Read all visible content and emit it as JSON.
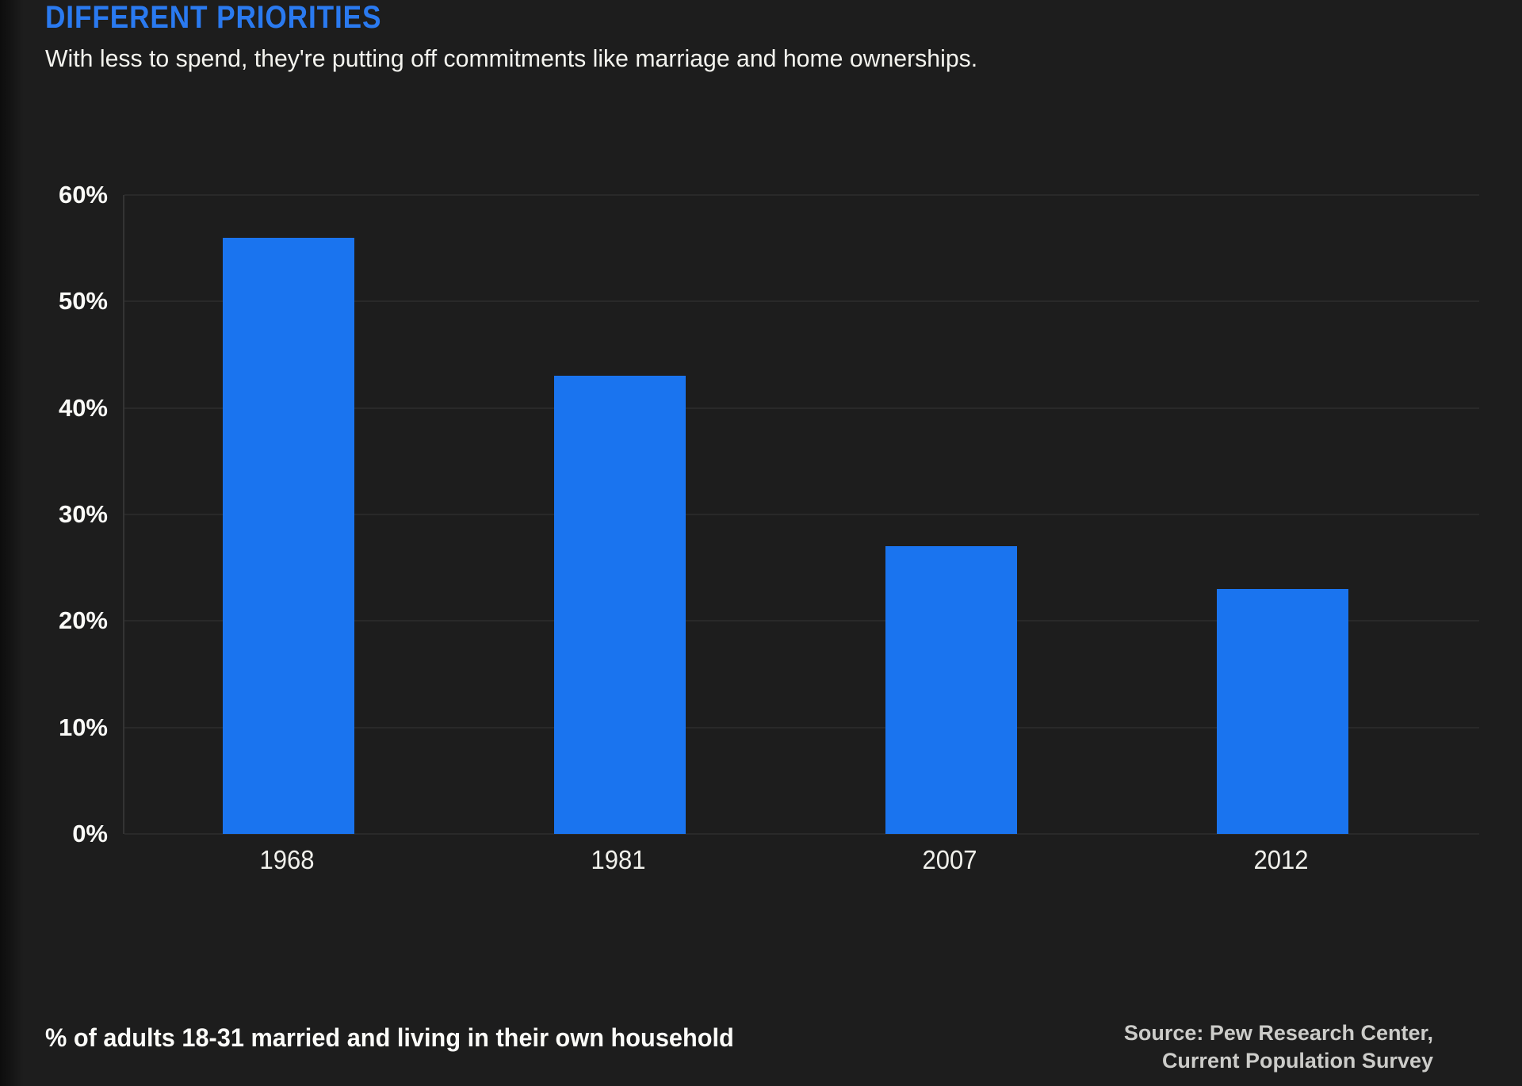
{
  "header": {
    "title": "DIFFERENT PRIORITIES",
    "subtitle": "With less to spend, they're putting off commitments like marriage and home ownerships."
  },
  "footer": {
    "note": "% of adults 18-31 married and living in their own household",
    "source_lines": [
      "Source: Pew Research Center,",
      "Current Population Survey"
    ]
  },
  "colors": {
    "background": "#1d1d1d",
    "bar": "#1a74ef",
    "title_accent": "#2a7af0",
    "text": "#f3f3ee",
    "muted_text": "#ccccc9",
    "gridline": "#2a2a2a"
  },
  "chart_data": {
    "type": "bar",
    "categories": [
      "1968",
      "1981",
      "2007",
      "2012"
    ],
    "values": [
      56,
      43,
      27,
      23
    ],
    "title": "DIFFERENT PRIORITIES",
    "subtitle": "With less to spend, they're putting off commitments like marriage and home ownerships.",
    "xlabel": "",
    "ylabel": "",
    "ylim": [
      0,
      60
    ],
    "ytick_step": 10,
    "ytick_labels": [
      "0%",
      "10%",
      "20%",
      "30%",
      "40%",
      "50%",
      "60%"
    ],
    "grid": true,
    "legend": "none",
    "note": "% of adults 18-31 married and living in their own household",
    "source": "Source: Pew Research Center, Current Population Survey"
  }
}
